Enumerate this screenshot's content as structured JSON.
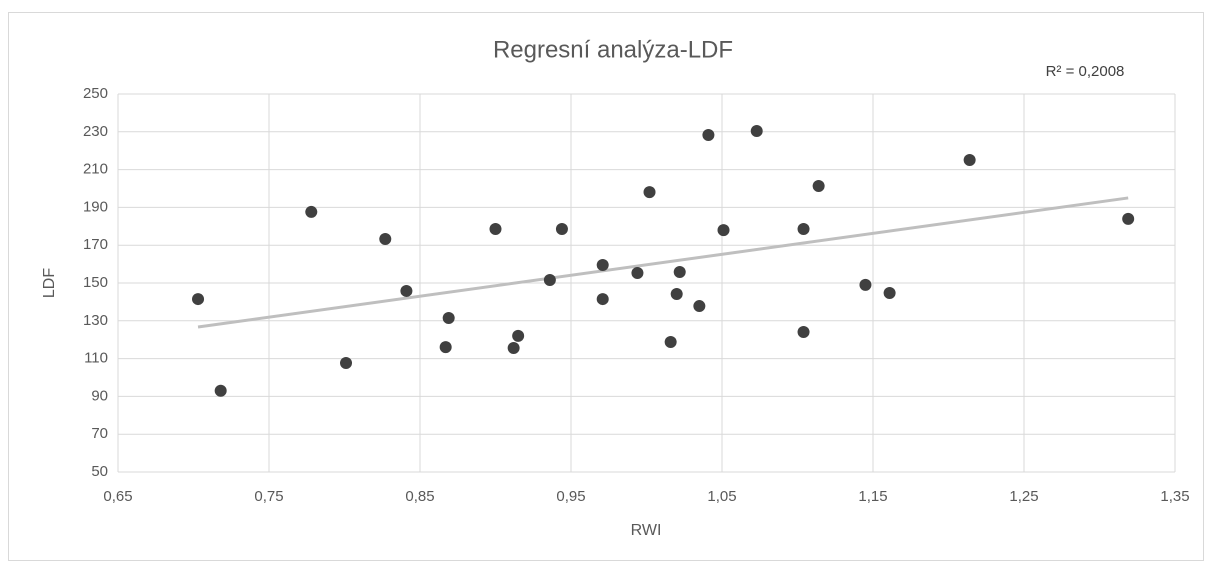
{
  "chart_data": {
    "type": "scatter",
    "title": "Regresní analýza-LDF",
    "annotation": "R² = 0,2008",
    "x_label": "RWI",
    "y_label": "LDF",
    "series": [
      {
        "name": "LDF",
        "color": "#404040",
        "x": [
          0.703,
          0.718,
          0.778,
          0.801,
          0.827,
          0.841,
          0.867,
          0.869,
          0.9,
          0.912,
          0.915,
          0.936,
          0.944,
          0.971,
          0.971,
          0.994,
          1.002,
          1.016,
          1.02,
          1.022,
          1.035,
          1.041,
          1.051,
          1.073,
          1.104,
          1.104,
          1.114,
          1.145,
          1.161,
          1.214,
          1.319
        ],
        "values": [
          141.5,
          93,
          187.6,
          107.7,
          173.3,
          145.8,
          116.1,
          131.5,
          178.6,
          115.6,
          122,
          151.6,
          178.6,
          159.5,
          141.5,
          155.3,
          198.1,
          118.8,
          144.2,
          155.8,
          137.8,
          228.3,
          178,
          230.4,
          124.1,
          178.6,
          201.3,
          149,
          144.7,
          215.1,
          183.9
        ]
      }
    ],
    "trendline": {
      "color": "#bfbfbf",
      "x": [
        0.703,
        1.319
      ],
      "values": [
        126.7,
        195
      ]
    },
    "xlim": [
      0.65,
      1.35
    ],
    "xticks": [
      {
        "value": 0.65,
        "label": "0,65"
      },
      {
        "value": 0.75,
        "label": "0,75"
      },
      {
        "value": 0.85,
        "label": "0,85"
      },
      {
        "value": 0.95,
        "label": "0,95"
      },
      {
        "value": 1.05,
        "label": "1,05"
      },
      {
        "value": 1.15,
        "label": "1,15"
      },
      {
        "value": 1.25,
        "label": "1,25"
      },
      {
        "value": 1.35,
        "label": "1,35"
      }
    ],
    "ylim": [
      50,
      250
    ],
    "yticks": [
      50,
      70,
      90,
      110,
      130,
      150,
      170,
      190,
      210,
      230,
      250
    ],
    "grid": true
  }
}
